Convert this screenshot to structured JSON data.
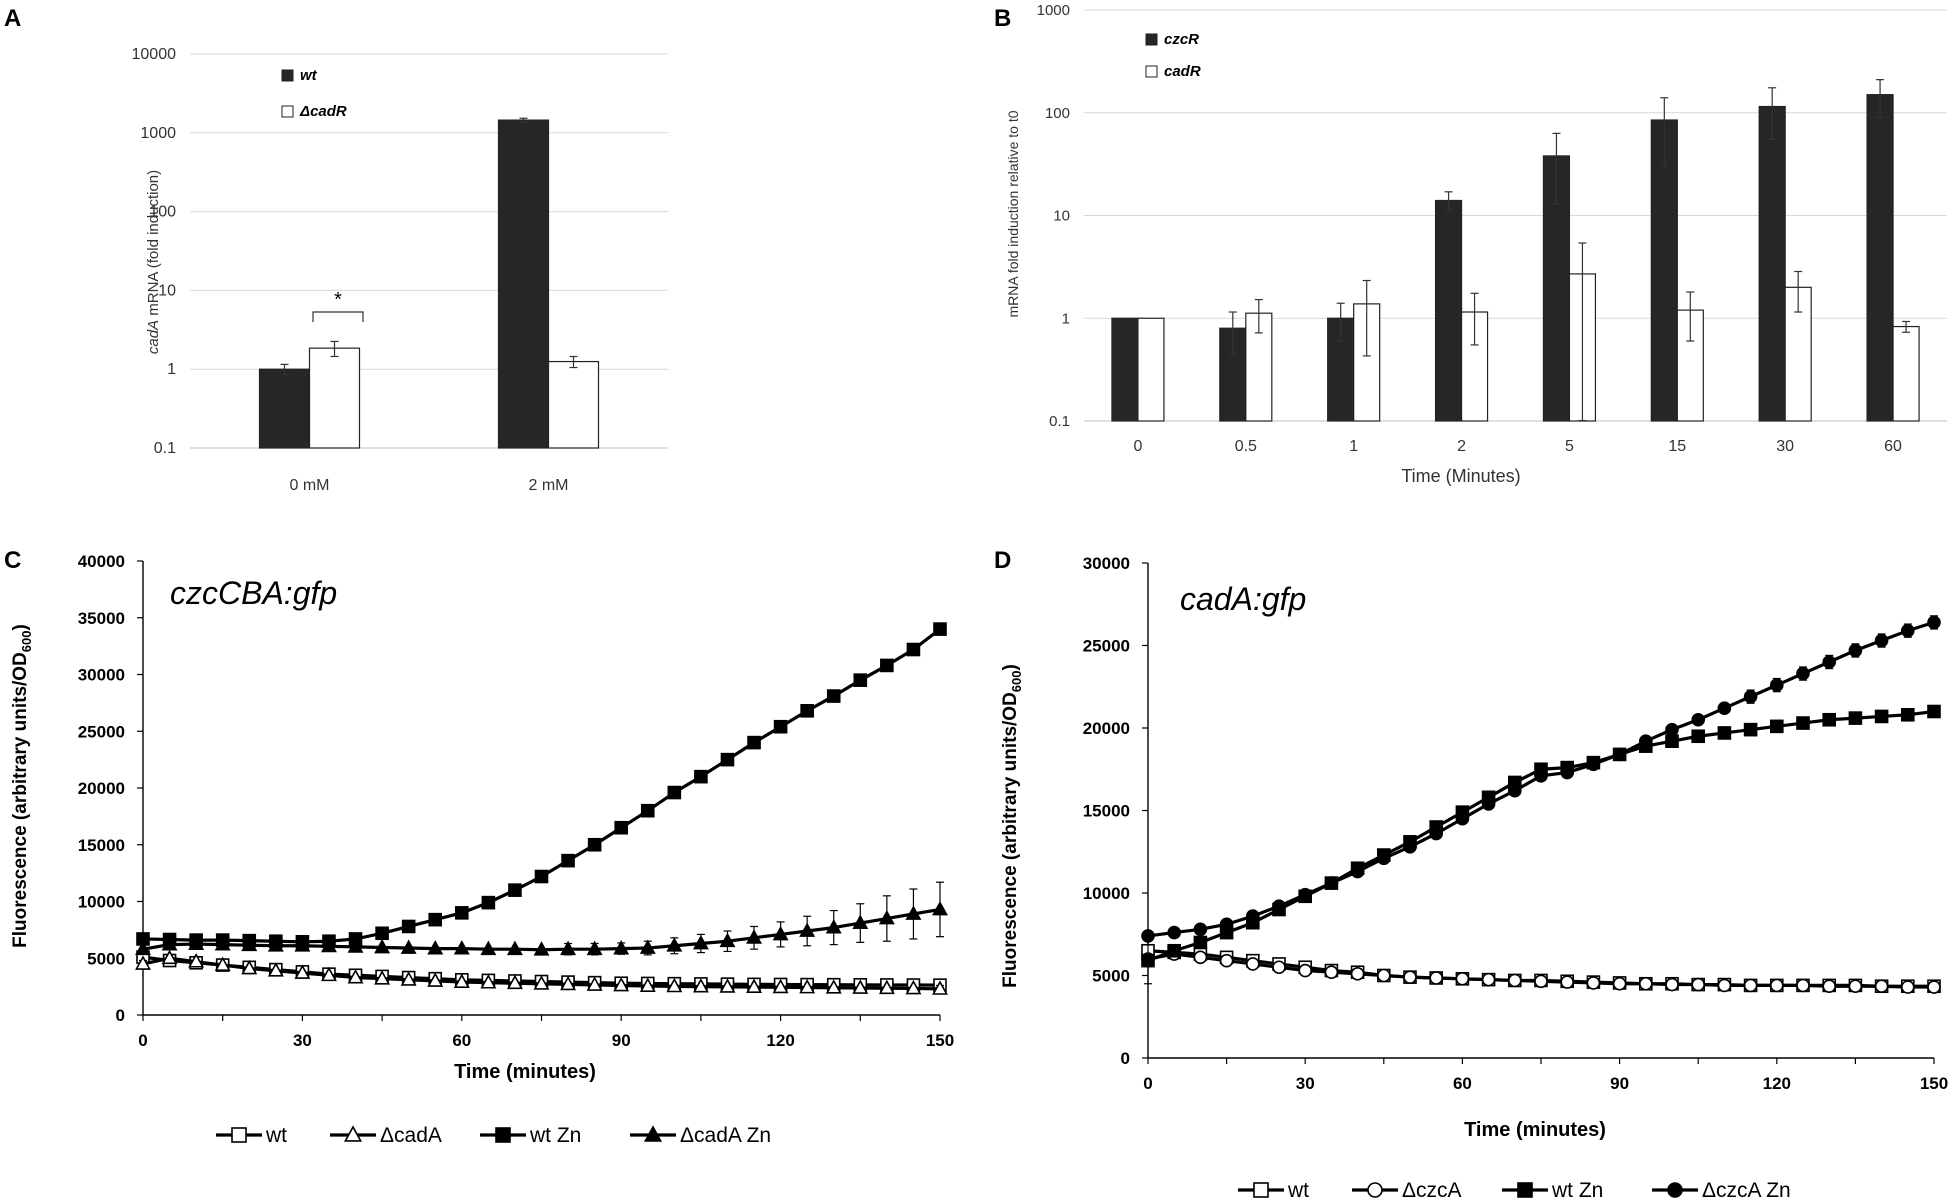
{
  "chart_data": [
    {
      "panel": "A",
      "type": "bar",
      "yscale": "log",
      "ylim": [
        0.1,
        10000
      ],
      "yticks": [
        "0.1",
        "1",
        "10",
        "100",
        "1000",
        "10000"
      ],
      "ylabel_italic": "cadA",
      "ylabel_rest": " mRNA (fold induction)",
      "categories": [
        "0 mM",
        "2 mM"
      ],
      "series": [
        {
          "name": "wt",
          "color": "#262626",
          "values": [
            1.0,
            1450
          ],
          "err": [
            0.15,
            80
          ]
        },
        {
          "name": "ΔcadR",
          "color": "#ffffff",
          "values": [
            1.85,
            1.25
          ],
          "err": [
            0.4,
            0.2
          ]
        }
      ],
      "annotation": "*"
    },
    {
      "panel": "B",
      "type": "bar",
      "yscale": "log",
      "ylim": [
        0.1,
        1000
      ],
      "yticks": [
        "0.1",
        "1",
        "10",
        "100",
        "1000"
      ],
      "ylabel": "mRNA fold induction relative to t0",
      "xlabel": "Time (Minutes)",
      "categories": [
        "0",
        "0.5",
        "1",
        "2",
        "5",
        "15",
        "30",
        "60"
      ],
      "series": [
        {
          "name": "czcR",
          "color": "#262626",
          "values": [
            1.0,
            0.8,
            1.0,
            14,
            38,
            85,
            115,
            150
          ],
          "err": [
            0,
            0.35,
            0.4,
            3,
            25,
            55,
            60,
            60
          ]
        },
        {
          "name": "cadR",
          "color": "#ffffff",
          "values": [
            1.0,
            1.12,
            1.38,
            1.15,
            2.7,
            1.2,
            2.0,
            0.83
          ],
          "err": [
            0,
            0.4,
            0.95,
            0.6,
            2.7,
            0.6,
            0.85,
            0.1
          ]
        }
      ]
    },
    {
      "panel": "C",
      "type": "line",
      "title": "czcCBA:gfp",
      "xlabel": "Time (minutes)",
      "ylabel": "Fluorescence (arbitrary units/OD",
      "ylabel_sub": "600",
      "ylabel_end": ")",
      "xlim": [
        0,
        150
      ],
      "ylim": [
        0,
        40000
      ],
      "xticks": [
        "0",
        "30",
        "60",
        "90",
        "120",
        "150"
      ],
      "yticks": [
        "0",
        "5000",
        "10000",
        "15000",
        "20000",
        "25000",
        "30000",
        "35000",
        "40000"
      ],
      "x": [
        0,
        5,
        10,
        15,
        20,
        25,
        30,
        35,
        40,
        45,
        50,
        55,
        60,
        65,
        70,
        75,
        80,
        85,
        90,
        95,
        100,
        105,
        110,
        115,
        120,
        125,
        130,
        135,
        140,
        145,
        150
      ],
      "series": [
        {
          "name": "wt",
          "marker": "square-open",
          "values": [
            5100,
            4800,
            4600,
            4400,
            4200,
            4000,
            3800,
            3600,
            3500,
            3400,
            3300,
            3200,
            3100,
            3050,
            3000,
            2950,
            2900,
            2850,
            2800,
            2780,
            2760,
            2740,
            2720,
            2700,
            2690,
            2680,
            2670,
            2660,
            2650,
            2640,
            2630
          ]
        },
        {
          "name": "ΔcadA",
          "marker": "triangle-open",
          "values": [
            4500,
            5000,
            4700,
            4400,
            4100,
            3900,
            3700,
            3500,
            3300,
            3200,
            3100,
            3000,
            2900,
            2850,
            2800,
            2750,
            2700,
            2650,
            2600,
            2550,
            2520,
            2500,
            2480,
            2460,
            2440,
            2420,
            2400,
            2380,
            2360,
            2340,
            2300
          ],
          "err": [
            300,
            0,
            0,
            0,
            0,
            0,
            0,
            0,
            0,
            0,
            0,
            0,
            0,
            0,
            0,
            0,
            0,
            0,
            0,
            0,
            0,
            0,
            0,
            0,
            0,
            0,
            0,
            0,
            0,
            0,
            300
          ]
        },
        {
          "name": "wt Zn",
          "marker": "square-filled",
          "values": [
            6700,
            6650,
            6600,
            6600,
            6550,
            6500,
            6450,
            6500,
            6700,
            7200,
            7800,
            8400,
            9000,
            9900,
            11000,
            12200,
            13600,
            15000,
            16500,
            18000,
            19600,
            21000,
            22500,
            24000,
            25400,
            26800,
            28100,
            29500,
            30800,
            32200,
            34000
          ]
        },
        {
          "name": "ΔcadA Zn",
          "marker": "triangle-filled",
          "values": [
            5800,
            6200,
            6250,
            6200,
            6150,
            6100,
            6100,
            6050,
            6000,
            5950,
            5900,
            5850,
            5850,
            5800,
            5800,
            5750,
            5800,
            5800,
            5850,
            5900,
            6100,
            6300,
            6500,
            6800,
            7100,
            7400,
            7700,
            8100,
            8500,
            8900,
            9300
          ],
          "err": [
            0,
            0,
            0,
            0,
            0,
            0,
            0,
            0,
            0,
            0,
            0,
            0,
            0,
            0,
            0,
            0,
            500,
            500,
            500,
            600,
            700,
            800,
            900,
            1000,
            1100,
            1300,
            1500,
            1700,
            2000,
            2200,
            2400
          ]
        }
      ]
    },
    {
      "panel": "D",
      "type": "line",
      "title": "cadA:gfp",
      "xlabel": "Time (minutes)",
      "ylabel": "Fluorescence (arbitrary units/OD",
      "ylabel_sub": "600",
      "ylabel_end": ")",
      "xlim": [
        0,
        150
      ],
      "ylim": [
        0,
        30000
      ],
      "xticks": [
        "0",
        "30",
        "60",
        "90",
        "120",
        "150"
      ],
      "yticks": [
        "0",
        "5000",
        "10000",
        "15000",
        "20000",
        "25000",
        "30000"
      ],
      "x": [
        0,
        5,
        10,
        15,
        20,
        25,
        30,
        35,
        40,
        45,
        50,
        55,
        60,
        65,
        70,
        75,
        80,
        85,
        90,
        95,
        100,
        105,
        110,
        115,
        120,
        125,
        130,
        135,
        140,
        145,
        150
      ],
      "series": [
        {
          "name": "wt",
          "marker": "square-open",
          "values": [
            6500,
            6400,
            6300,
            6100,
            5900,
            5700,
            5500,
            5300,
            5200,
            5000,
            4900,
            4850,
            4800,
            4750,
            4700,
            4700,
            4650,
            4600,
            4550,
            4500,
            4500,
            4450,
            4450,
            4400,
            4400,
            4400,
            4400,
            4400,
            4350,
            4350,
            4350
          ]
        },
        {
          "name": "ΔczcA",
          "marker": "circle-open",
          "values": [
            6000,
            6300,
            6100,
            5900,
            5700,
            5500,
            5300,
            5200,
            5100,
            5000,
            4900,
            4850,
            4800,
            4750,
            4700,
            4650,
            4600,
            4550,
            4500,
            4500,
            4450,
            4450,
            4400,
            4400,
            4400,
            4400,
            4350,
            4350,
            4350,
            4300,
            4300
          ],
          "err": [
            1500,
            0,
            0,
            0,
            0,
            0,
            0,
            0,
            0,
            0,
            0,
            0,
            0,
            0,
            0,
            0,
            0,
            0,
            0,
            0,
            0,
            0,
            0,
            0,
            0,
            0,
            0,
            0,
            0,
            0,
            0
          ]
        },
        {
          "name": "wt Zn",
          "marker": "square-filled",
          "values": [
            5900,
            6500,
            7000,
            7600,
            8200,
            9000,
            9800,
            10600,
            11500,
            12300,
            13100,
            14000,
            14900,
            15800,
            16700,
            17500,
            17600,
            17900,
            18400,
            18900,
            19200,
            19500,
            19700,
            19900,
            20100,
            20300,
            20500,
            20600,
            20700,
            20800,
            21000
          ]
        },
        {
          "name": "ΔczcA Zn",
          "marker": "circle-filled",
          "values": [
            7400,
            7600,
            7800,
            8100,
            8600,
            9200,
            9900,
            10600,
            11300,
            12100,
            12800,
            13600,
            14500,
            15400,
            16200,
            17100,
            17300,
            17800,
            18400,
            19200,
            19900,
            20500,
            21200,
            21900,
            22600,
            23300,
            24000,
            24700,
            25300,
            25900,
            26400
          ],
          "err": [
            0,
            0,
            0,
            0,
            0,
            0,
            0,
            0,
            0,
            0,
            0,
            0,
            0,
            0,
            0,
            0,
            0,
            0,
            0,
            0,
            0,
            0,
            0,
            400,
            400,
            400,
            400,
            400,
            400,
            400,
            400
          ]
        }
      ]
    }
  ]
}
